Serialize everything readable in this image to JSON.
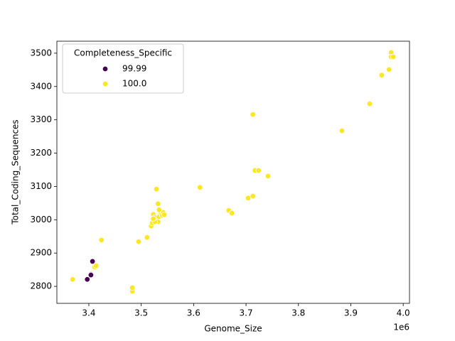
{
  "chart_data": {
    "type": "scatter",
    "x_label": "Genome_Size",
    "y_label": "Total_Coding_Sequences",
    "x_offset_label": "1e6",
    "legend_title": "Completeness_Specific",
    "legend": "upper left",
    "xlim": [
      3339000,
      4012000
    ],
    "xticks": [
      {
        "value": 3400000,
        "label": "3.4"
      },
      {
        "value": 3500000,
        "label": "3.5"
      },
      {
        "value": 3600000,
        "label": "3.6"
      },
      {
        "value": 3700000,
        "label": "3.7"
      },
      {
        "value": 3800000,
        "label": "3.8"
      },
      {
        "value": 3900000,
        "label": "3.9"
      },
      {
        "value": 4000000,
        "label": "4.0"
      }
    ],
    "ylim": [
      2749,
      3536
    ],
    "yticks": [
      2800,
      2900,
      3000,
      3100,
      3200,
      3300,
      3400,
      3500
    ],
    "series": [
      {
        "name": "99.99",
        "color": "#440154",
        "x": [
          3397000,
          3404000,
          3404000,
          3407000
        ],
        "values": [
          2821,
          2836,
          2834,
          2875
        ]
      },
      {
        "name": "100.0",
        "color": "#fde725",
        "x": [
          3369000,
          3411000,
          3414000,
          3424000,
          3483000,
          3483000,
          3483000,
          3495000,
          3511000,
          3529000,
          3532000,
          3519000,
          3521000,
          3523000,
          3526000,
          3529000,
          3532000,
          3534000,
          3536000,
          3538000,
          3540000,
          3542000,
          3544000,
          3526000,
          3523000,
          3534000,
          3612000,
          3667000,
          3673000,
          3704000,
          3713000,
          3713000,
          3717000,
          3724000,
          3742000,
          3883000,
          3936000,
          3959000,
          3973000,
          3977000,
          3977000,
          3981000
        ],
        "values": [
          2821,
          2858,
          2862,
          2939,
          2791,
          2785,
          2796,
          2934,
          2947,
          3092,
          3048,
          2981,
          2990,
          3016,
          3007,
          2998,
          2994,
          3009,
          3026,
          3020,
          3013,
          3022,
          3015,
          2994,
          3003,
          3030,
          3097,
          3028,
          3020,
          3065,
          3071,
          3316,
          3148,
          3148,
          3131,
          3267,
          3348,
          3434,
          3451,
          3502,
          3489,
          3489
        ]
      }
    ]
  }
}
